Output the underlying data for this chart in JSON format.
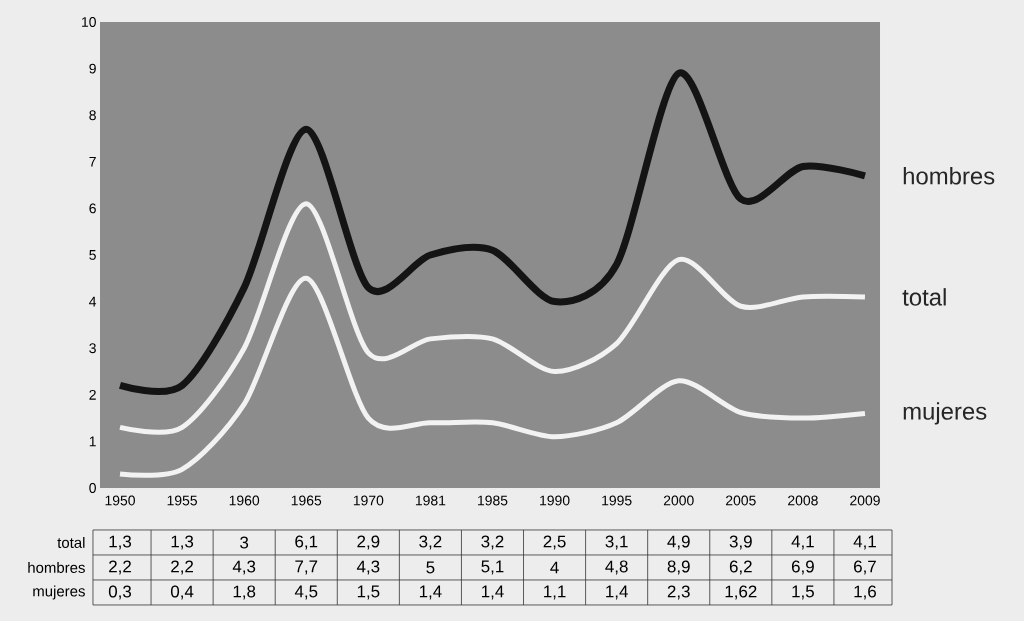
{
  "chart_data": {
    "type": "line",
    "categories": [
      "1950",
      "1955",
      "1960",
      "1965",
      "1970",
      "1981",
      "1985",
      "1990",
      "1995",
      "2000",
      "2005",
      "2008",
      "2009"
    ],
    "series": [
      {
        "name": "total",
        "color": "#f2f2f2",
        "values": [
          1.3,
          1.3,
          3,
          6.1,
          2.9,
          3.2,
          3.2,
          2.5,
          3.1,
          4.9,
          3.9,
          4.1,
          4.1
        ],
        "value_labels": [
          "1,3",
          "1,3",
          "3",
          "6,1",
          "2,9",
          "3,2",
          "3,2",
          "2,5",
          "3,1",
          "4,9",
          "3,9",
          "4,1",
          "4,1"
        ]
      },
      {
        "name": "hombres",
        "color": "#141414",
        "values": [
          2.2,
          2.2,
          4.3,
          7.7,
          4.3,
          5,
          5.1,
          4,
          4.8,
          8.9,
          6.2,
          6.9,
          6.7
        ],
        "value_labels": [
          "2,2",
          "2,2",
          "4,3",
          "7,7",
          "4,3",
          "5",
          "5,1",
          "4",
          "4,8",
          "8,9",
          "6,2",
          "6,9",
          "6,7"
        ]
      },
      {
        "name": "mujeres",
        "color": "#f2f2f2",
        "values": [
          0.3,
          0.4,
          1.8,
          4.5,
          1.5,
          1.4,
          1.4,
          1.1,
          1.4,
          2.3,
          1.62,
          1.5,
          1.6
        ],
        "value_labels": [
          "0,3",
          "0,4",
          "1,8",
          "4,5",
          "1,5",
          "1,4",
          "1,4",
          "1,1",
          "1,4",
          "2,3",
          "1,62",
          "1,5",
          "1,6"
        ]
      }
    ],
    "ylim": [
      0,
      10
    ],
    "yticks": [
      0,
      1,
      2,
      3,
      4,
      5,
      6,
      7,
      8,
      9,
      10
    ],
    "marker": "none",
    "line_style": "solid",
    "legend": false,
    "grid": false
  }
}
